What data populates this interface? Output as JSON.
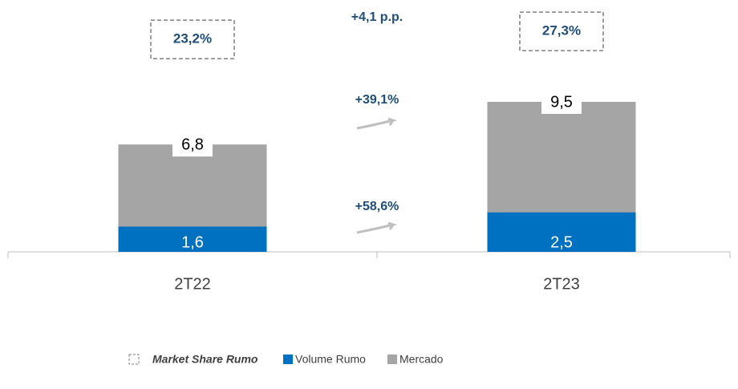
{
  "chart_data": {
    "type": "bar",
    "categories": [
      "2T22",
      "2T23"
    ],
    "series": [
      {
        "name": "Mercado",
        "color": "#a5a5a5",
        "values": [
          6.8,
          9.5
        ],
        "value_labels": [
          "6,8",
          "9,5"
        ]
      },
      {
        "name": "Volume Rumo",
        "color": "#0070c0",
        "values": [
          1.6,
          2.5
        ],
        "value_labels": [
          "1,6",
          "2,5"
        ]
      },
      {
        "name": "Market Share Rumo",
        "color": "#1f4e79",
        "values": [
          23.2,
          27.3
        ],
        "value_labels": [
          "23,2%",
          "27,3%"
        ]
      }
    ],
    "annotations": [
      "+4,1 p.p.",
      "+39,1%",
      "+58,6%"
    ]
  }
}
